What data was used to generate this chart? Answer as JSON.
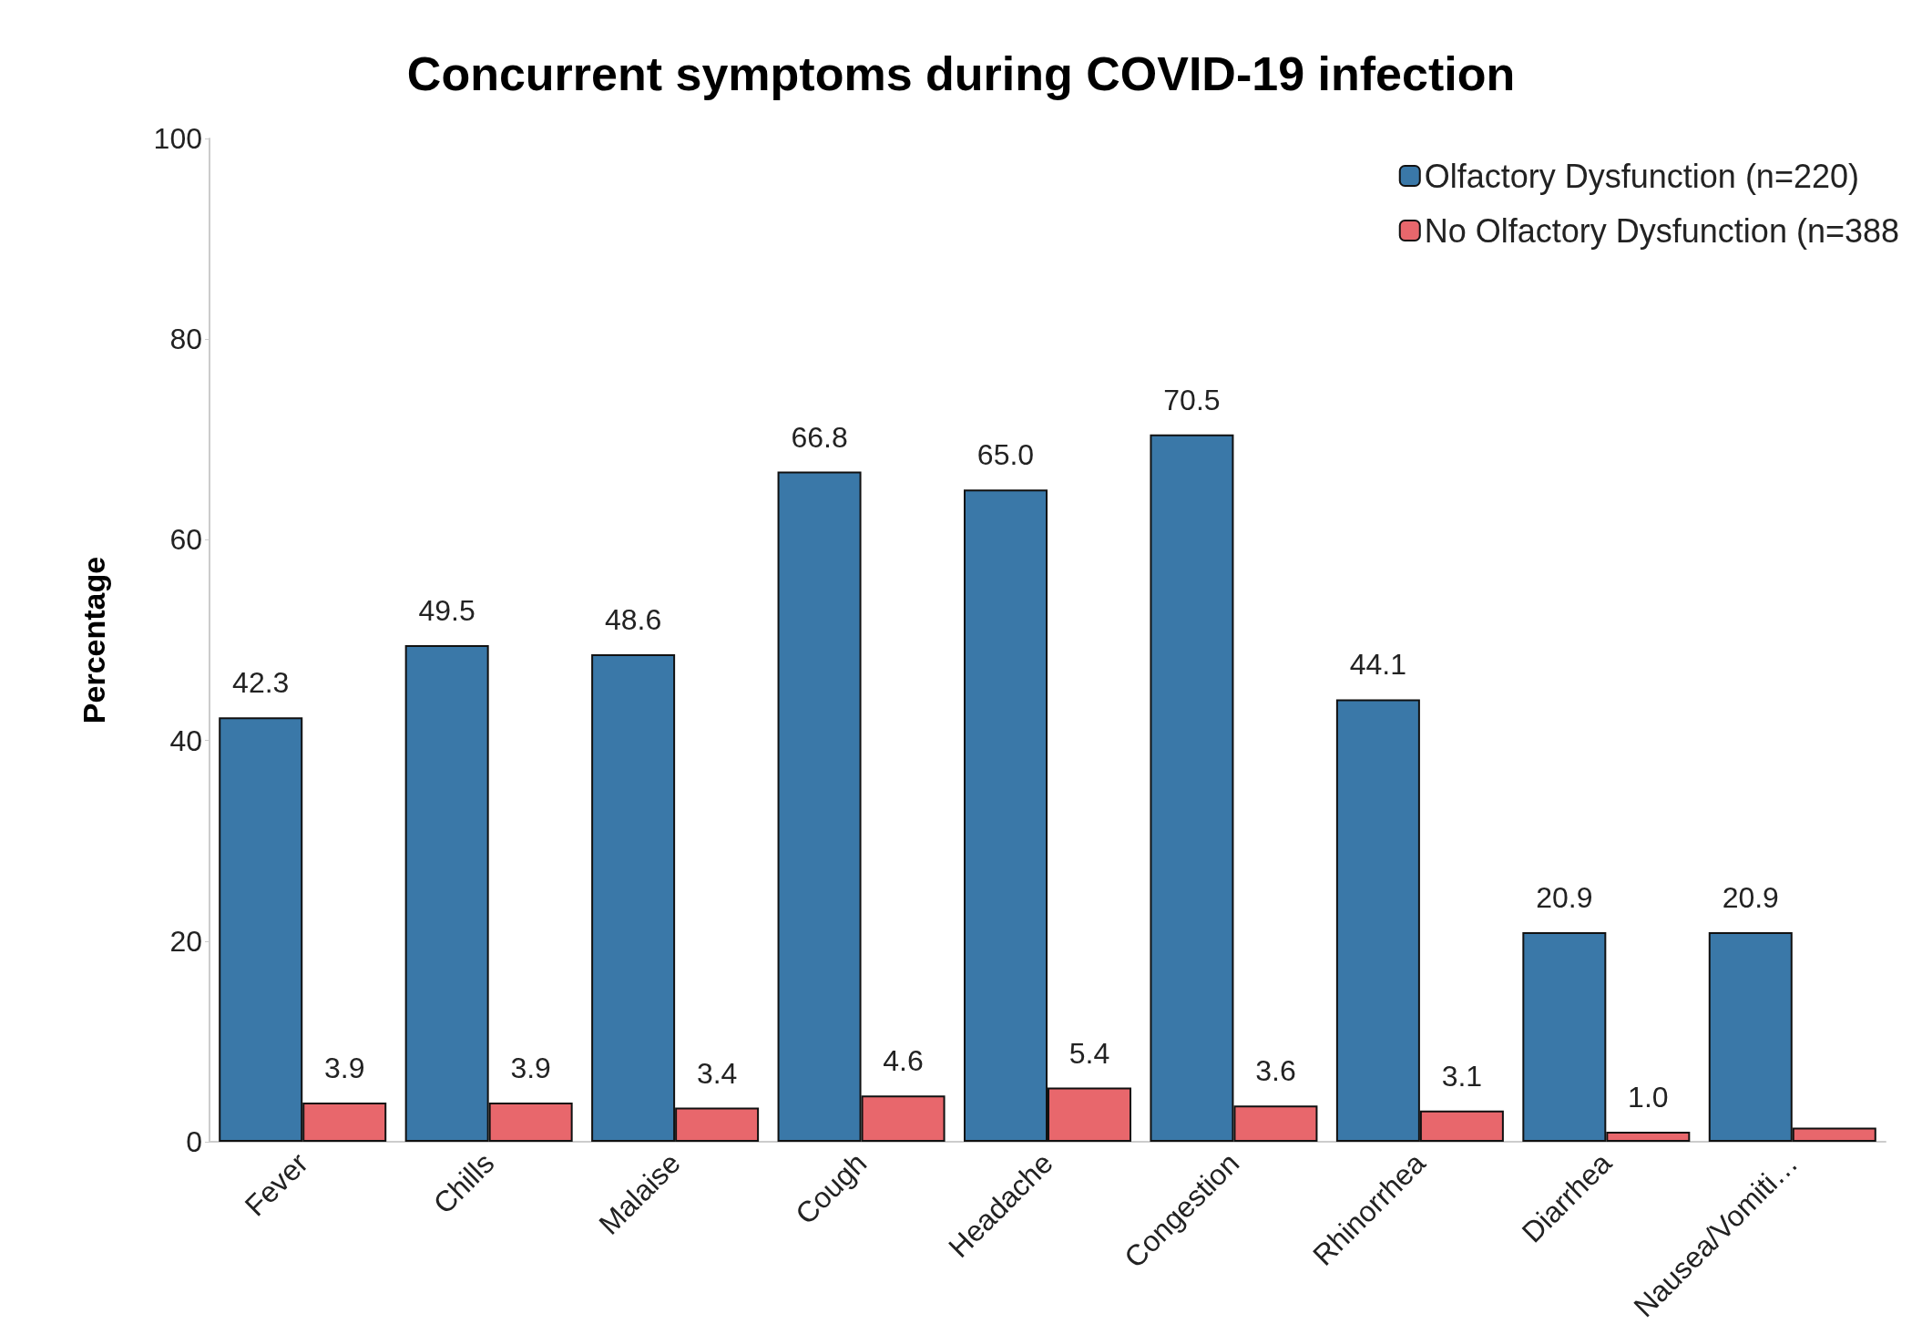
{
  "chart_data": {
    "type": "bar",
    "title": "Concurrent symptoms during COVID-19 infection",
    "ylabel": "Percentage",
    "categories": [
      "Fever",
      "Chills",
      "Malaise",
      "Cough",
      "Headache",
      "Congestion",
      "Rhinorrhea",
      "Diarrhea",
      "Nausea/Vomiti…"
    ],
    "series": [
      {
        "name": "Olfactory Dysfunction (n=220)",
        "color": "#3a78a8",
        "values": [
          42.3,
          49.5,
          48.6,
          66.8,
          65.0,
          70.5,
          44.1,
          20.9,
          20.9
        ],
        "value_labels": [
          "42.3",
          "49.5",
          "48.6",
          "66.8",
          "65.0",
          "70.5",
          "44.1",
          "20.9",
          "20.9"
        ]
      },
      {
        "name": "No Olfactory Dysfunction (n=388",
        "color": "#e8676c",
        "values": [
          3.9,
          3.9,
          3.4,
          4.6,
          5.4,
          3.6,
          3.1,
          1.0,
          1.4
        ],
        "value_labels": [
          "3.9",
          "3.9",
          "3.4",
          "4.6",
          "5.4",
          "3.6",
          "3.1",
          "1.0",
          null
        ]
      }
    ],
    "ylim": [
      0,
      100
    ],
    "yticks": [
      0,
      20,
      40,
      60,
      80,
      100
    ],
    "grid": false,
    "legend": "top right"
  }
}
